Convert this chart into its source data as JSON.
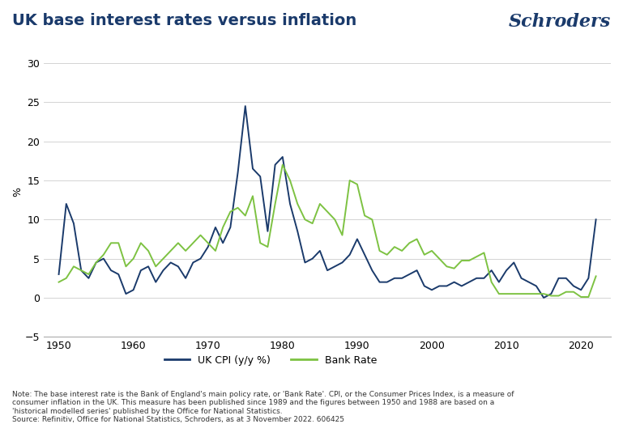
{
  "title": "UK base interest rates versus inflation",
  "schroders_text": "Schroders",
  "ylabel": "%",
  "xlim": [
    1948,
    2024
  ],
  "ylim": [
    -5,
    32
  ],
  "yticks": [
    -5,
    0,
    5,
    10,
    15,
    20,
    25,
    30
  ],
  "xticks": [
    1950,
    1960,
    1970,
    1980,
    1990,
    2000,
    2010,
    2020
  ],
  "cpi_color": "#1a3a6b",
  "bank_color": "#7dc242",
  "background_color": "#ffffff",
  "legend_label_cpi": "UK CPI (y/y %)",
  "legend_label_bank": "Bank Rate",
  "note_text": "Note: The base interest rate is the Bank of England's main policy rate, or 'Bank Rate'. CPI, or the Consumer Prices Index, is a measure of\nconsumer inflation in the UK. This measure has been published since 1989 and the figures between 1950 and 1988 are based on a\n'historical modelled series' published by the Office for National Statistics.\nSource: Refinitiv, Office for National Statistics, Schroders, as at 3 November 2022. 606425",
  "cpi_years": [
    1950,
    1951,
    1952,
    1953,
    1954,
    1955,
    1956,
    1957,
    1958,
    1959,
    1960,
    1961,
    1962,
    1963,
    1964,
    1965,
    1966,
    1967,
    1968,
    1969,
    1970,
    1971,
    1972,
    1973,
    1974,
    1975,
    1976,
    1977,
    1978,
    1979,
    1980,
    1981,
    1982,
    1983,
    1984,
    1985,
    1986,
    1987,
    1988,
    1989,
    1990,
    1991,
    1992,
    1993,
    1994,
    1995,
    1996,
    1997,
    1998,
    1999,
    2000,
    2001,
    2002,
    2003,
    2004,
    2005,
    2006,
    2007,
    2008,
    2009,
    2010,
    2011,
    2012,
    2013,
    2014,
    2015,
    2016,
    2017,
    2018,
    2019,
    2020,
    2021,
    2022
  ],
  "cpi_values": [
    3.0,
    12.0,
    9.5,
    3.5,
    2.5,
    4.5,
    5.0,
    3.5,
    3.0,
    0.5,
    1.0,
    3.5,
    4.0,
    2.0,
    3.5,
    4.5,
    4.0,
    2.5,
    4.5,
    5.0,
    6.5,
    9.0,
    7.0,
    9.0,
    16.0,
    24.5,
    16.5,
    15.5,
    8.5,
    17.0,
    18.0,
    12.0,
    8.5,
    4.5,
    5.0,
    6.0,
    3.5,
    4.0,
    4.5,
    5.5,
    7.5,
    5.5,
    3.5,
    2.0,
    2.0,
    2.5,
    2.5,
    3.0,
    3.5,
    1.5,
    1.0,
    1.5,
    1.5,
    2.0,
    1.5,
    2.0,
    2.5,
    2.5,
    3.5,
    2.0,
    3.5,
    4.5,
    2.5,
    2.0,
    1.5,
    0.0,
    0.5,
    2.5,
    2.5,
    1.5,
    1.0,
    2.5,
    10.0
  ],
  "bank_years": [
    1950,
    1951,
    1952,
    1953,
    1954,
    1955,
    1956,
    1957,
    1958,
    1959,
    1960,
    1961,
    1962,
    1963,
    1964,
    1965,
    1966,
    1967,
    1968,
    1969,
    1970,
    1971,
    1972,
    1973,
    1974,
    1975,
    1976,
    1977,
    1978,
    1979,
    1980,
    1981,
    1982,
    1983,
    1984,
    1985,
    1986,
    1987,
    1988,
    1989,
    1990,
    1991,
    1992,
    1993,
    1994,
    1995,
    1996,
    1997,
    1998,
    1999,
    2000,
    2001,
    2002,
    2003,
    2004,
    2005,
    2006,
    2007,
    2008,
    2009,
    2010,
    2011,
    2012,
    2013,
    2014,
    2015,
    2016,
    2017,
    2018,
    2019,
    2020,
    2021,
    2022
  ],
  "bank_values": [
    2.0,
    2.5,
    4.0,
    3.5,
    3.0,
    4.5,
    5.5,
    7.0,
    7.0,
    4.0,
    5.0,
    7.0,
    6.0,
    4.0,
    5.0,
    6.0,
    7.0,
    6.0,
    7.0,
    8.0,
    7.0,
    6.0,
    9.0,
    11.0,
    11.5,
    10.5,
    13.0,
    7.0,
    6.5,
    12.0,
    17.0,
    15.0,
    12.0,
    10.0,
    9.5,
    12.0,
    11.0,
    10.0,
    8.0,
    15.0,
    14.5,
    10.5,
    10.0,
    6.0,
    5.5,
    6.5,
    6.0,
    7.0,
    7.5,
    5.5,
    6.0,
    5.0,
    4.0,
    3.75,
    4.75,
    4.75,
    5.25,
    5.75,
    2.0,
    0.5,
    0.5,
    0.5,
    0.5,
    0.5,
    0.5,
    0.5,
    0.25,
    0.25,
    0.75,
    0.75,
    0.1,
    0.1,
    2.75
  ]
}
